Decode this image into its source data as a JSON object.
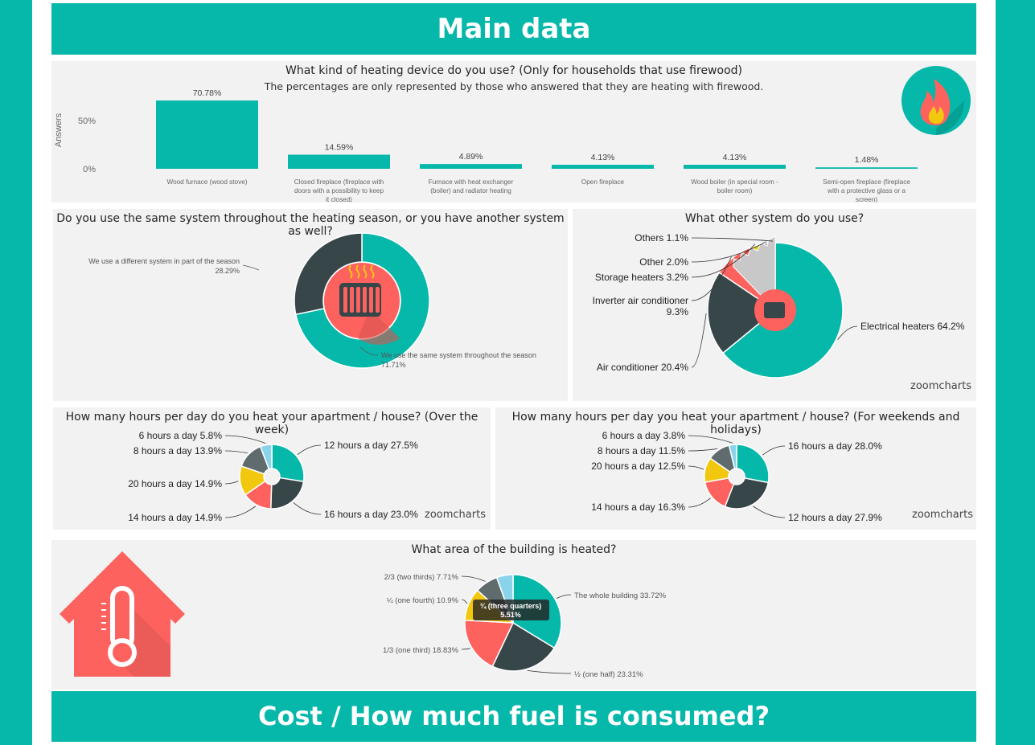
{
  "header": {
    "title": "Main data"
  },
  "footer": {
    "title": "Cost / How much fuel is consumed?"
  },
  "watermark": "zoomcharts",
  "colors": {
    "teal": "#06b8aa",
    "dark": "#374649",
    "coral": "#fd625e",
    "yellow": "#f2c80f",
    "gray": "#5f6b6d",
    "lightteal": "#8ad4eb",
    "silver": "#c8c8c8"
  },
  "chart_data": [
    {
      "id": "heating-device",
      "type": "bar",
      "title": "What kind of heating device do you use? (Only for households that use firewood)",
      "subtitle": "The percentages are only represented by those who answered that they are heating with firewood.",
      "ylabel": "Answers",
      "yticks": [
        "50%",
        "0%"
      ],
      "categories": [
        "Wood furnace (wood stove)",
        "Closed fireplace (fireplace with doors with a possibility to keep it closed)",
        "Furnace with heat exchanger (boiler) and radiator heating",
        "Open fireplace",
        "Wood boiler (in special room - boiler room)",
        "Semi-open fireplace (fireplace with a protective glass or a screen)"
      ],
      "values": [
        70.78,
        14.59,
        4.89,
        4.13,
        4.13,
        1.48
      ],
      "value_labels": [
        "70.78%",
        "14.59%",
        "4.89%",
        "4.13%",
        "4.13%",
        "1.48%"
      ],
      "ylim": [
        0,
        75
      ]
    },
    {
      "id": "same-system",
      "type": "pie",
      "title": "Do you use the same system throughout the heating season, or you have another system as well?",
      "slices": [
        {
          "label": "We use the same system throughout the season",
          "value_label": "71.71%",
          "value": 71.71,
          "color": "#06b8aa"
        },
        {
          "label": "We use a different system in part of the season",
          "value_label": "28.29%",
          "value": 28.29,
          "color": "#374649"
        }
      ]
    },
    {
      "id": "other-system",
      "type": "pie",
      "title": "What other system do you use?",
      "slices": [
        {
          "label": "Electrical heaters 64.2%",
          "value": 64.2,
          "color": "#06b8aa"
        },
        {
          "label": "Air conditioner 20.4%",
          "value": 20.4,
          "color": "#374649"
        },
        {
          "label": "Inverter air conditioner 9.3%",
          "value": 9.3,
          "color": "#fd625e"
        },
        {
          "label": "Storage heaters 3.2%",
          "value": 3.2,
          "color": "#f2c80f"
        },
        {
          "label": "Other 2.0%",
          "value": 2.0,
          "color": "#5f6b6d"
        },
        {
          "label": "Others 1.1%",
          "value": 1.1,
          "color": "#c8c8c8"
        }
      ]
    },
    {
      "id": "hours-week",
      "type": "pie",
      "title": "How many hours per day do you heat your apartment / house? (Over the week)",
      "slices": [
        {
          "label": "12 hours a day 27.5%",
          "value": 27.5,
          "color": "#06b8aa"
        },
        {
          "label": "16 hours a day 23.0%",
          "value": 23.0,
          "color": "#374649"
        },
        {
          "label": "14 hours a day 14.9%",
          "value": 14.9,
          "color": "#fd625e"
        },
        {
          "label": "20 hours a day 14.9%",
          "value": 14.9,
          "color": "#f2c80f"
        },
        {
          "label": "8 hours a day 13.9%",
          "value": 13.9,
          "color": "#5f6b6d"
        },
        {
          "label": "6 hours a day 5.8%",
          "value": 5.8,
          "color": "#8ad4eb"
        }
      ]
    },
    {
      "id": "hours-weekend",
      "type": "pie",
      "title": "How many hours per day you heat your apartment / house? (For weekends and holidays)",
      "slices": [
        {
          "label": "16 hours a day 28.0%",
          "value": 28.0,
          "color": "#06b8aa"
        },
        {
          "label": "12 hours a day 27.9%",
          "value": 27.9,
          "color": "#374649"
        },
        {
          "label": "14 hours a day 16.3%",
          "value": 16.3,
          "color": "#fd625e"
        },
        {
          "label": "20 hours a day 12.5%",
          "value": 12.5,
          "color": "#f2c80f"
        },
        {
          "label": "8 hours a day 11.5%",
          "value": 11.5,
          "color": "#5f6b6d"
        },
        {
          "label": "6 hours a day 3.8%",
          "value": 3.8,
          "color": "#8ad4eb"
        }
      ]
    },
    {
      "id": "area-heated",
      "type": "pie",
      "title": "What area of the building is heated?",
      "slices": [
        {
          "label": "The whole building 33.72%",
          "value": 33.72,
          "color": "#06b8aa"
        },
        {
          "label": "½ (one half) 23.31%",
          "value": 23.31,
          "color": "#374649"
        },
        {
          "label": "1/3 (one third) 18.83%",
          "value": 18.83,
          "color": "#fd625e"
        },
        {
          "label": "¼ (one fourth) 10.9%",
          "value": 10.9,
          "color": "#f2c80f"
        },
        {
          "label": "2/3 (two thirds) 7.71%",
          "value": 7.71,
          "color": "#5f6b6d"
        },
        {
          "label": "¾ (three quarters) 5.51%",
          "value": 5.51,
          "color": "#8ad4eb"
        }
      ],
      "tooltip": {
        "line1": "¾ (three quarters)",
        "line2": "5.51%"
      }
    }
  ]
}
